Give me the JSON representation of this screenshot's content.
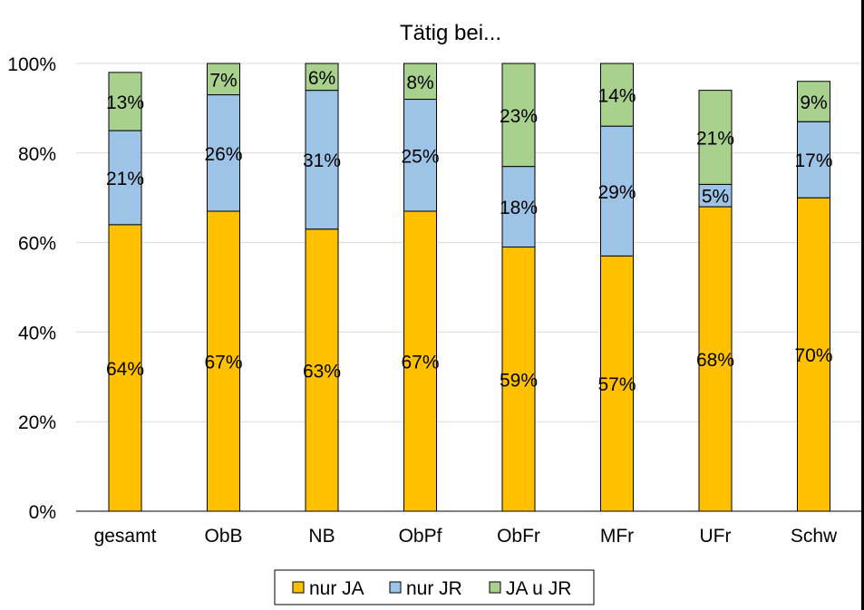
{
  "chart_data": {
    "type": "bar",
    "stacked": true,
    "title": "Tätig bei...",
    "categories": [
      "gesamt",
      "ObB",
      "NB",
      "ObPf",
      "ObFr",
      "MFr",
      "UFr",
      "Schw"
    ],
    "series": [
      {
        "name": "nur JA",
        "color": "#ffc000",
        "values": [
          64,
          67,
          63,
          67,
          59,
          57,
          68,
          70
        ],
        "labels": [
          "64%",
          "67%",
          "63%",
          "67%",
          "59%",
          "57%",
          "68%",
          "70%"
        ]
      },
      {
        "name": "nur JR",
        "color": "#9dc3e6",
        "values": [
          21,
          26,
          31,
          25,
          18,
          29,
          5,
          17
        ],
        "labels": [
          "21%",
          "26%",
          "31%",
          "25%",
          "18%",
          "29%",
          "5%",
          "17%"
        ]
      },
      {
        "name": "JA u JR",
        "color": "#a9d18e",
        "values": [
          13,
          7,
          6,
          8,
          23,
          14,
          21,
          9
        ],
        "labels": [
          "13%",
          "7%",
          "6%",
          "8%",
          "23%",
          "14%",
          "21%",
          "9%"
        ]
      }
    ],
    "ylim": [
      0,
      100
    ],
    "yticks": [
      0,
      20,
      40,
      60,
      80,
      100
    ],
    "ytick_labels": [
      "0%",
      "20%",
      "40%",
      "60%",
      "80%",
      "100%"
    ],
    "grid": true,
    "legend_position": "bottom"
  }
}
